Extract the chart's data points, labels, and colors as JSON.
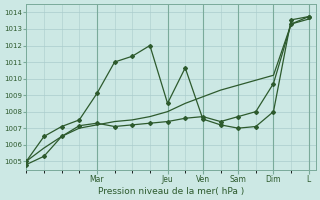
{
  "xlabel": "Pression niveau de la mer( hPa )",
  "bg_color": "#cce8e4",
  "grid_color": "#aacccc",
  "line_color": "#2d5a2d",
  "vline_color": "#7aaa9a",
  "ylim": [
    1004.5,
    1014.5
  ],
  "yticks": [
    1005,
    1006,
    1007,
    1008,
    1009,
    1010,
    1011,
    1012,
    1013,
    1014
  ],
  "xlim": [
    0,
    8.2
  ],
  "day_labels": [
    "Mar",
    "Jeu",
    "Ven",
    "Sam",
    "Dim",
    "L"
  ],
  "day_positions": [
    2,
    4,
    5,
    6,
    7,
    8
  ],
  "smooth_x": [
    0,
    0.5,
    1.0,
    1.5,
    2.0,
    2.5,
    3.0,
    3.5,
    4.0,
    4.5,
    5.0,
    5.5,
    6.0,
    6.5,
    7.0,
    7.5,
    8.0
  ],
  "smooth_y": [
    1005.0,
    1005.8,
    1006.5,
    1007.0,
    1007.2,
    1007.4,
    1007.5,
    1007.7,
    1008.0,
    1008.5,
    1008.9,
    1009.3,
    1009.6,
    1009.9,
    1010.2,
    1013.3,
    1013.6
  ],
  "jagged1_x": [
    0,
    0.5,
    1.0,
    1.5,
    2.0,
    2.5,
    3.0,
    3.5,
    4.0,
    4.5,
    5.0,
    5.5,
    6.0,
    6.5,
    7.0,
    7.5,
    8.0
  ],
  "jagged1_y": [
    1005.0,
    1006.5,
    1007.1,
    1007.5,
    1009.1,
    1011.0,
    1011.35,
    1012.0,
    1008.5,
    1010.65,
    1007.55,
    1007.2,
    1007.0,
    1007.1,
    1008.0,
    1013.55,
    1013.75
  ],
  "jagged2_x": [
    0,
    0.5,
    1.0,
    1.5,
    2.0,
    2.5,
    3.0,
    3.5,
    4.0,
    4.5,
    5.0,
    5.5,
    6.0,
    6.5,
    7.0,
    7.5,
    8.0
  ],
  "jagged2_y": [
    1004.8,
    1005.3,
    1006.5,
    1007.15,
    1007.3,
    1007.1,
    1007.2,
    1007.3,
    1007.4,
    1007.6,
    1007.7,
    1007.4,
    1007.7,
    1008.0,
    1009.7,
    1013.3,
    1013.75
  ]
}
